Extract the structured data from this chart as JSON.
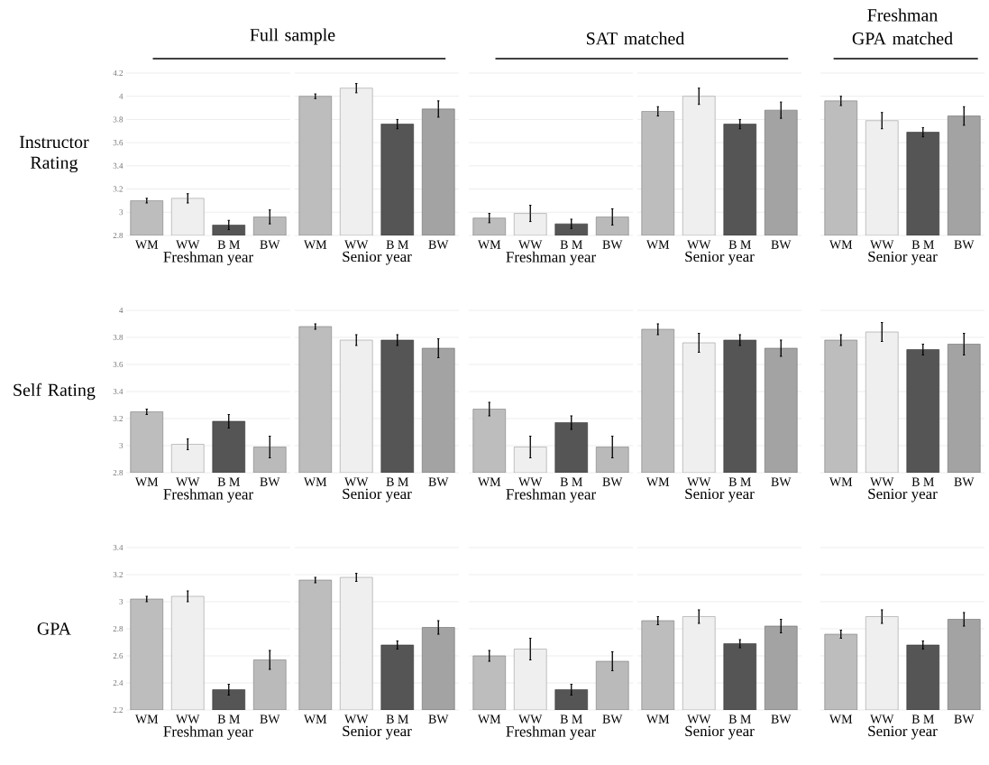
{
  "chart_data": [
    {
      "type": "bar",
      "title": "Full sample",
      "ylabel": "Instructor Rating",
      "xlabel": "Freshman year",
      "categories": [
        "WM",
        "WW",
        "B M",
        "BW"
      ],
      "values": [
        3.1,
        3.12,
        2.89,
        2.96
      ],
      "errors": [
        0.02,
        0.04,
        0.04,
        0.06
      ],
      "colors": [
        "#bdbdbd",
        "#efefef",
        "#555555",
        "#bababa"
      ],
      "ylim": [
        2.8,
        4.2
      ],
      "yticks": [
        2.8,
        3,
        3.2,
        3.4,
        3.6,
        3.8,
        4,
        4.2
      ],
      "grid": "y"
    },
    {
      "type": "bar",
      "xlabel": "Senior year",
      "categories": [
        "WM",
        "WW",
        "B M",
        "BW"
      ],
      "values": [
        4.0,
        4.07,
        3.76,
        3.89
      ],
      "errors": [
        0.02,
        0.04,
        0.04,
        0.07
      ],
      "colors": [
        "#bdbdbd",
        "#efefef",
        "#555555",
        "#a3a3a3"
      ],
      "ylim": [
        2.8,
        4.2
      ],
      "yticks": [
        2.8,
        3,
        3.2,
        3.4,
        3.6,
        3.8,
        4,
        4.2
      ],
      "grid": "y",
      "tick_labels": "x"
    },
    {
      "type": "bar",
      "title": "SAT matched",
      "xlabel": "Freshman year",
      "categories": [
        "WM",
        "WW",
        "B M",
        "BW"
      ],
      "values": [
        2.95,
        2.99,
        2.9,
        2.96
      ],
      "errors": [
        0.04,
        0.07,
        0.04,
        0.07
      ],
      "colors": [
        "#bdbdbd",
        "#efefef",
        "#555555",
        "#bababa"
      ],
      "ylim": [
        2.8,
        4.2
      ],
      "yticks": [
        2.8,
        3,
        3.2,
        3.4,
        3.6,
        3.8,
        4,
        4.2
      ],
      "grid": "y",
      "tick_labels": "x"
    },
    {
      "type": "bar",
      "xlabel": "Senior year",
      "categories": [
        "WM",
        "WW",
        "B M",
        "BW"
      ],
      "values": [
        3.87,
        4.0,
        3.76,
        3.88
      ],
      "errors": [
        0.04,
        0.07,
        0.04,
        0.07
      ],
      "colors": [
        "#bdbdbd",
        "#efefef",
        "#555555",
        "#a3a3a3"
      ],
      "ylim": [
        2.8,
        4.2
      ],
      "yticks": [
        2.8,
        3,
        3.2,
        3.4,
        3.6,
        3.8,
        4,
        4.2
      ],
      "grid": "y",
      "tick_labels": "x"
    },
    {
      "type": "bar",
      "title": "Freshman GPA matched",
      "xlabel": "Senior year",
      "categories": [
        "WM",
        "WW",
        "B M",
        "BW"
      ],
      "values": [
        3.96,
        3.79,
        3.69,
        3.83
      ],
      "errors": [
        0.04,
        0.07,
        0.04,
        0.08
      ],
      "colors": [
        "#bdbdbd",
        "#efefef",
        "#555555",
        "#a3a3a3"
      ],
      "ylim": [
        2.8,
        4.2
      ],
      "yticks": [
        2.8,
        3,
        3.2,
        3.4,
        3.6,
        3.8,
        4,
        4.2
      ],
      "grid": "y",
      "tick_labels": "x"
    },
    {
      "type": "bar",
      "ylabel": "Self Rating",
      "xlabel": "Freshman year",
      "categories": [
        "WM",
        "WW",
        "B M",
        "BW"
      ],
      "values": [
        3.25,
        3.01,
        3.18,
        2.99
      ],
      "errors": [
        0.02,
        0.04,
        0.05,
        0.08
      ],
      "colors": [
        "#bdbdbd",
        "#efefef",
        "#555555",
        "#bababa"
      ],
      "ylim": [
        2.8,
        4
      ],
      "yticks": [
        2.8,
        3,
        3.2,
        3.4,
        3.6,
        3.8,
        4
      ],
      "grid": "y"
    },
    {
      "type": "bar",
      "xlabel": "Senior year",
      "categories": [
        "WM",
        "WW",
        "B M",
        "BW"
      ],
      "values": [
        3.88,
        3.78,
        3.78,
        3.72
      ],
      "errors": [
        0.02,
        0.04,
        0.04,
        0.07
      ],
      "colors": [
        "#bdbdbd",
        "#efefef",
        "#555555",
        "#a3a3a3"
      ],
      "ylim": [
        2.8,
        4
      ],
      "yticks": [
        2.8,
        3,
        3.2,
        3.4,
        3.6,
        3.8,
        4
      ],
      "grid": "y",
      "tick_labels": "x"
    },
    {
      "type": "bar",
      "xlabel": "Freshman year",
      "categories": [
        "WM",
        "WW",
        "B M",
        "BW"
      ],
      "values": [
        3.27,
        2.99,
        3.17,
        2.99
      ],
      "errors": [
        0.05,
        0.08,
        0.05,
        0.08
      ],
      "colors": [
        "#bdbdbd",
        "#efefef",
        "#555555",
        "#bababa"
      ],
      "ylim": [
        2.8,
        4
      ],
      "yticks": [
        2.8,
        3,
        3.2,
        3.4,
        3.6,
        3.8,
        4
      ],
      "grid": "y",
      "tick_labels": "x"
    },
    {
      "type": "bar",
      "xlabel": "Senior year",
      "categories": [
        "WM",
        "WW",
        "B M",
        "BW"
      ],
      "values": [
        3.86,
        3.76,
        3.78,
        3.72
      ],
      "errors": [
        0.04,
        0.07,
        0.04,
        0.06
      ],
      "colors": [
        "#bdbdbd",
        "#efefef",
        "#555555",
        "#a3a3a3"
      ],
      "ylim": [
        2.8,
        4
      ],
      "yticks": [
        2.8,
        3,
        3.2,
        3.4,
        3.6,
        3.8,
        4
      ],
      "grid": "y",
      "tick_labels": "x"
    },
    {
      "type": "bar",
      "xlabel": "Senior year",
      "categories": [
        "WM",
        "WW",
        "B M",
        "BW"
      ],
      "values": [
        3.78,
        3.84,
        3.71,
        3.75
      ],
      "errors": [
        0.04,
        0.07,
        0.04,
        0.08
      ],
      "colors": [
        "#bdbdbd",
        "#efefef",
        "#555555",
        "#a3a3a3"
      ],
      "ylim": [
        2.8,
        4
      ],
      "yticks": [
        2.8,
        3,
        3.2,
        3.4,
        3.6,
        3.8,
        4
      ],
      "grid": "y",
      "tick_labels": "x"
    },
    {
      "type": "bar",
      "ylabel": "GPA",
      "xlabel": "Freshman year",
      "categories": [
        "WM",
        "WW",
        "B M",
        "BW"
      ],
      "values": [
        3.02,
        3.04,
        2.35,
        2.57
      ],
      "errors": [
        0.02,
        0.04,
        0.04,
        0.07
      ],
      "colors": [
        "#bdbdbd",
        "#efefef",
        "#555555",
        "#bababa"
      ],
      "ylim": [
        2.2,
        3.4
      ],
      "yticks": [
        2.2,
        2.4,
        2.6,
        2.8,
        3,
        3.2,
        3.4
      ],
      "grid": "y"
    },
    {
      "type": "bar",
      "xlabel": "Senior year",
      "categories": [
        "WM",
        "WW",
        "B M",
        "BW"
      ],
      "values": [
        3.16,
        3.18,
        2.68,
        2.81
      ],
      "errors": [
        0.02,
        0.03,
        0.03,
        0.05
      ],
      "colors": [
        "#bdbdbd",
        "#efefef",
        "#555555",
        "#a3a3a3"
      ],
      "ylim": [
        2.2,
        3.4
      ],
      "yticks": [
        2.2,
        2.4,
        2.6,
        2.8,
        3,
        3.2,
        3.4
      ],
      "grid": "y",
      "tick_labels": "x"
    },
    {
      "type": "bar",
      "xlabel": "Freshman year",
      "categories": [
        "WM",
        "WW",
        "B M",
        "BW"
      ],
      "values": [
        2.6,
        2.65,
        2.35,
        2.56
      ],
      "errors": [
        0.04,
        0.08,
        0.04,
        0.07
      ],
      "colors": [
        "#bdbdbd",
        "#efefef",
        "#555555",
        "#bababa"
      ],
      "ylim": [
        2.2,
        3.4
      ],
      "yticks": [
        2.2,
        2.4,
        2.6,
        2.8,
        3,
        3.2,
        3.4
      ],
      "grid": "y",
      "tick_labels": "x"
    },
    {
      "type": "bar",
      "xlabel": "Senior year",
      "categories": [
        "WM",
        "WW",
        "B M",
        "BW"
      ],
      "values": [
        2.86,
        2.89,
        2.69,
        2.82
      ],
      "errors": [
        0.03,
        0.05,
        0.03,
        0.05
      ],
      "colors": [
        "#bdbdbd",
        "#efefef",
        "#555555",
        "#a3a3a3"
      ],
      "ylim": [
        2.2,
        3.4
      ],
      "yticks": [
        2.2,
        2.4,
        2.6,
        2.8,
        3,
        3.2,
        3.4
      ],
      "grid": "y",
      "tick_labels": "x"
    },
    {
      "type": "bar",
      "xlabel": "Senior year",
      "categories": [
        "WM",
        "WW",
        "B M",
        "BW"
      ],
      "values": [
        2.76,
        2.89,
        2.68,
        2.87
      ],
      "errors": [
        0.03,
        0.05,
        0.03,
        0.05
      ],
      "colors": [
        "#bdbdbd",
        "#efefef",
        "#555555",
        "#a3a3a3"
      ],
      "ylim": [
        2.2,
        3.4
      ],
      "yticks": [
        2.2,
        2.4,
        2.6,
        2.8,
        3,
        3.2,
        3.4
      ],
      "grid": "y",
      "tick_labels": "x"
    }
  ]
}
